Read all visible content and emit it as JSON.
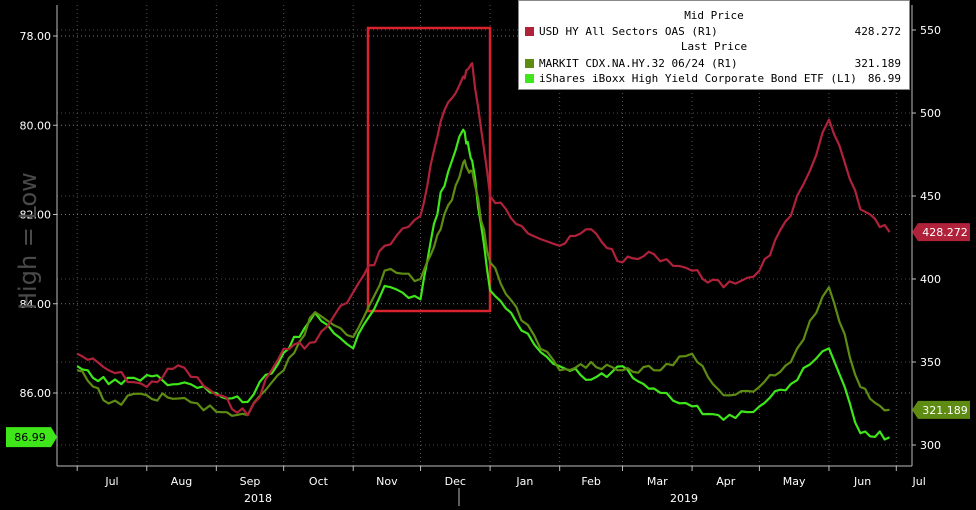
{
  "chart_data": {
    "type": "line",
    "title": "",
    "ylabel_left": "High = Low",
    "left_axis": {
      "ticks": [
        "78.00",
        "80.00",
        "82.00",
        "84.00",
        "86.00"
      ],
      "inverted": true,
      "ylim": [
        77.3,
        87.7
      ]
    },
    "right_axis": {
      "ticks": [
        "550",
        "500",
        "450",
        "400",
        "350",
        "300"
      ],
      "ylim": [
        283,
        560
      ]
    },
    "x_ticks": [
      "Jul",
      "Aug",
      "Sep",
      "Oct",
      "Nov",
      "Dec",
      "Jan",
      "Feb",
      "Mar",
      "Apr",
      "May",
      "Jun",
      "Jul"
    ],
    "x_years": [
      "2018",
      "2019"
    ],
    "grid": true,
    "legend": {
      "placement": "top-right",
      "header_mid": "Mid Price",
      "header_last": "Last Price",
      "entries": [
        {
          "name": "USD HY All Sectors OAS  (R1)",
          "value": "428.272",
          "color": "#b0213a"
        },
        {
          "name": "MARKIT CDX.NA.HY.32 06/24  (R1)",
          "value": "321.189",
          "color": "#5e8c12"
        },
        {
          "name": "iShares iBoxx High Yield Corporate Bond ETF  (L1)",
          "value": "86.99",
          "color": "#3fe61a"
        }
      ]
    },
    "last_value_tags": [
      {
        "label": "428.272",
        "color": "#b0213a",
        "axis": "right"
      },
      {
        "label": "321.189",
        "color": "#5e8c12",
        "axis": "right"
      },
      {
        "label": "86.99",
        "color": "#3fe61a",
        "axis": "left"
      }
    ],
    "series": [
      {
        "name": "USD HY All Sectors OAS  (R1)",
        "axis": "right",
        "color": "#b0213a",
        "x": [
          "2018-07-01",
          "2018-07-15",
          "2018-08-01",
          "2018-08-15",
          "2018-09-01",
          "2018-09-15",
          "2018-10-01",
          "2018-10-15",
          "2018-11-01",
          "2018-11-15",
          "2018-12-01",
          "2018-12-10",
          "2018-12-20",
          "2018-12-24",
          "2019-01-01",
          "2019-01-15",
          "2019-02-01",
          "2019-02-15",
          "2019-03-01",
          "2019-03-15",
          "2019-04-01",
          "2019-04-15",
          "2019-05-01",
          "2019-05-15",
          "2019-06-01",
          "2019-06-15",
          "2019-06-28"
        ],
        "values": [
          355,
          345,
          335,
          348,
          330,
          318,
          358,
          362,
          392,
          420,
          438,
          495,
          522,
          530,
          450,
          432,
          420,
          430,
          410,
          415,
          405,
          395,
          405,
          438,
          496,
          442,
          428.272
        ]
      },
      {
        "name": "MARKIT CDX.NA.HY.32 06/24  (R1)",
        "axis": "right",
        "color": "#5e8c12",
        "x": [
          "2018-07-01",
          "2018-07-15",
          "2018-08-01",
          "2018-08-15",
          "2018-09-01",
          "2018-09-15",
          "2018-10-01",
          "2018-10-15",
          "2018-11-01",
          "2018-11-15",
          "2018-12-01",
          "2018-12-10",
          "2018-12-20",
          "2018-12-24",
          "2019-01-01",
          "2019-01-15",
          "2019-02-01",
          "2019-02-15",
          "2019-03-01",
          "2019-03-15",
          "2019-04-01",
          "2019-04-15",
          "2019-05-01",
          "2019-05-15",
          "2019-06-01",
          "2019-06-15",
          "2019-06-28"
        ],
        "values": [
          345,
          325,
          330,
          328,
          320,
          318,
          345,
          380,
          365,
          405,
          400,
          430,
          470,
          465,
          410,
          375,
          345,
          350,
          345,
          345,
          355,
          330,
          335,
          350,
          395,
          335,
          321.189
        ]
      },
      {
        "name": "iShares iBoxx High Yield Corporate Bond ETF  (L1)",
        "axis": "left",
        "color": "#3fe61a",
        "x": [
          "2018-07-01",
          "2018-07-15",
          "2018-08-01",
          "2018-08-15",
          "2018-09-01",
          "2018-09-15",
          "2018-10-01",
          "2018-10-15",
          "2018-11-01",
          "2018-11-15",
          "2018-12-01",
          "2018-12-10",
          "2018-12-20",
          "2018-12-24",
          "2019-01-01",
          "2019-01-15",
          "2019-02-01",
          "2019-02-15",
          "2019-03-01",
          "2019-03-15",
          "2019-04-01",
          "2019-04-15",
          "2019-05-01",
          "2019-05-15",
          "2019-06-01",
          "2019-06-15",
          "2019-06-28"
        ],
        "values": [
          85.4,
          85.8,
          85.6,
          85.8,
          86.0,
          86.2,
          85.1,
          84.2,
          85.0,
          83.6,
          83.9,
          81.5,
          80.1,
          80.8,
          83.7,
          84.6,
          85.4,
          85.7,
          85.4,
          85.9,
          86.3,
          86.6,
          86.3,
          85.8,
          85.0,
          86.9,
          86.99
        ]
      }
    ]
  }
}
